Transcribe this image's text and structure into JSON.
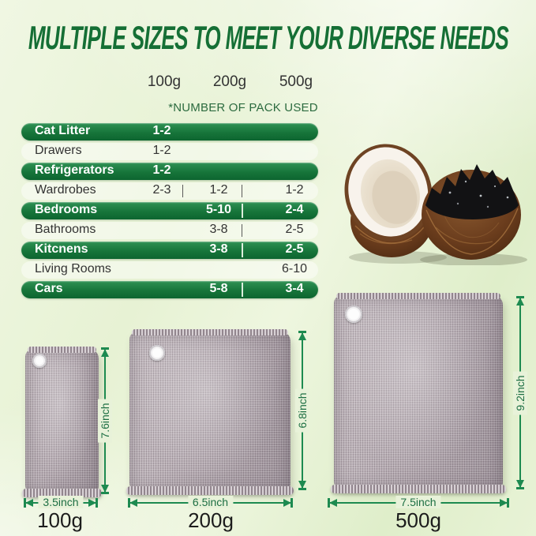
{
  "title": "MULTIPLE SIZES TO MEET YOUR DIVERSE NEEDS",
  "pack_note": "*NUMBER OF PACK USED",
  "columns": [
    "100g",
    "200g",
    "500g"
  ],
  "table": {
    "rows": [
      {
        "label": "Cat Litter",
        "highlight": true,
        "values": {
          "100g": "1-2"
        },
        "seps": []
      },
      {
        "label": "Drawers",
        "highlight": false,
        "values": {
          "100g": "1-2"
        },
        "seps": []
      },
      {
        "label": "Refrigerators",
        "highlight": true,
        "values": {
          "100g": "1-2"
        },
        "seps": []
      },
      {
        "label": "Wardrobes",
        "highlight": false,
        "values": {
          "100g": "2-3",
          "200g": "1-2",
          "500g": "1-2"
        },
        "seps": [
          1,
          2
        ]
      },
      {
        "label": "Bedrooms",
        "highlight": true,
        "values": {
          "200g": "5-10",
          "500g": "2-4"
        },
        "seps": [
          2
        ]
      },
      {
        "label": "Bathrooms",
        "highlight": false,
        "values": {
          "200g": "3-8",
          "500g": "2-5"
        },
        "seps": [
          2
        ]
      },
      {
        "label": "Kitcnens",
        "highlight": true,
        "values": {
          "200g": "3-8",
          "500g": "2-5"
        },
        "seps": [
          2
        ]
      },
      {
        "label": "Living Rooms",
        "highlight": false,
        "values": {
          "500g": "6-10"
        },
        "seps": []
      },
      {
        "label": "Cars",
        "highlight": true,
        "values": {
          "200g": "5-8",
          "500g": "3-4"
        },
        "seps": [
          2
        ]
      }
    ]
  },
  "bags": [
    {
      "weight": "100g",
      "width_label": "3.5inch",
      "height_label": "7.6inch"
    },
    {
      "weight": "200g",
      "width_label": "6.5inch",
      "height_label": "6.8inch"
    },
    {
      "weight": "500g",
      "width_label": "7.5inch",
      "height_label": "9.2inch"
    }
  ],
  "colors": {
    "title_green": "#156f35",
    "pill_green_top": "#2f9154",
    "pill_green_bottom": "#0d6530",
    "pill_text": "#ffffff",
    "table_text": "#333333",
    "dim_line_green": "#1d8a50",
    "dim_text_green": "#1d6f43",
    "weight_text": "#1c1c1c",
    "bag_fabric": "#b2a7ae",
    "coconut_husk_brown": "#7a4a27",
    "charcoal_black": "#121214",
    "background_green_light": "#e9f3d8"
  }
}
